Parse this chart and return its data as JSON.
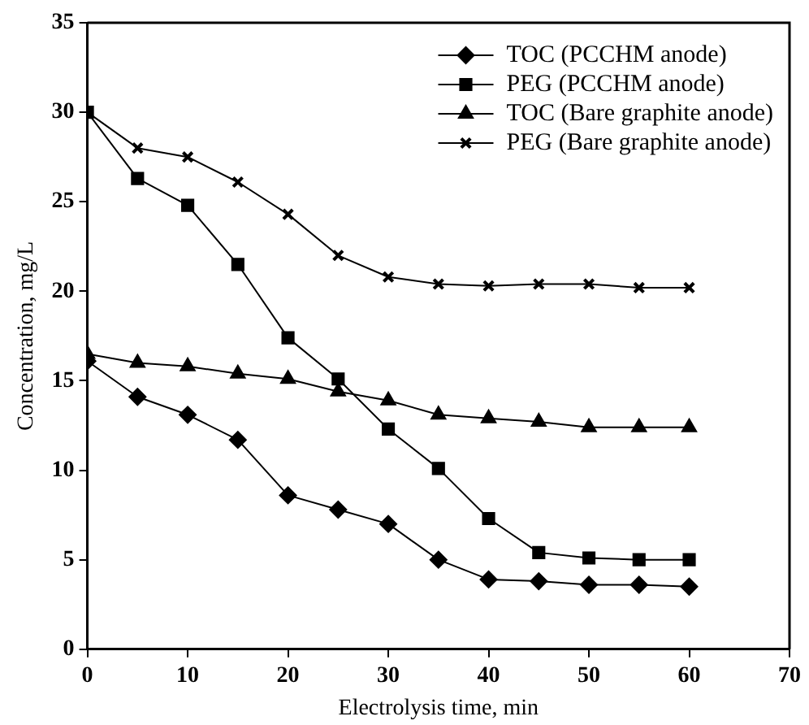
{
  "chart_data": {
    "type": "line",
    "xlabel": "Electrolysis time, min",
    "ylabel": "Concentration, mg/L",
    "x": [
      0,
      5,
      10,
      15,
      20,
      25,
      30,
      35,
      40,
      45,
      50,
      55,
      60
    ],
    "series": [
      {
        "name": "TOC (PCCHM anode)",
        "color": "#000000",
        "marker": "diamond",
        "values": [
          16.1,
          14.1,
          13.1,
          11.7,
          8.6,
          7.8,
          7.0,
          5.0,
          3.9,
          3.8,
          3.6,
          3.6,
          3.5
        ]
      },
      {
        "name": "PEG (PCCHM anode)",
        "color": "#000000",
        "marker": "square",
        "values": [
          30,
          26.3,
          24.8,
          21.5,
          17.4,
          15.1,
          12.3,
          10.1,
          7.3,
          5.4,
          5.1,
          5.0,
          5.0
        ]
      },
      {
        "name": "TOC (Bare graphite anode)",
        "color": "#000000",
        "marker": "triangle",
        "values": [
          16.5,
          16.0,
          15.8,
          15.4,
          15.1,
          14.4,
          13.9,
          13.1,
          12.9,
          12.7,
          12.4,
          12.4,
          12.4
        ]
      },
      {
        "name": "PEG (Bare graphite anode)",
        "color": "#000000",
        "marker": "cross",
        "values": [
          30,
          28,
          27.5,
          26.1,
          24.3,
          22,
          20.8,
          20.4,
          20.3,
          20.4,
          20.4,
          20.2,
          20.2
        ]
      }
    ],
    "xlim": [
      0,
      70
    ],
    "xticks": [
      0,
      10,
      20,
      30,
      40,
      50,
      60,
      70
    ],
    "ylim": [
      0,
      35
    ],
    "yticks": [
      0,
      5,
      10,
      15,
      20,
      25,
      30,
      35
    ],
    "grid": false,
    "legend": "top right",
    "line_style": "solid"
  }
}
